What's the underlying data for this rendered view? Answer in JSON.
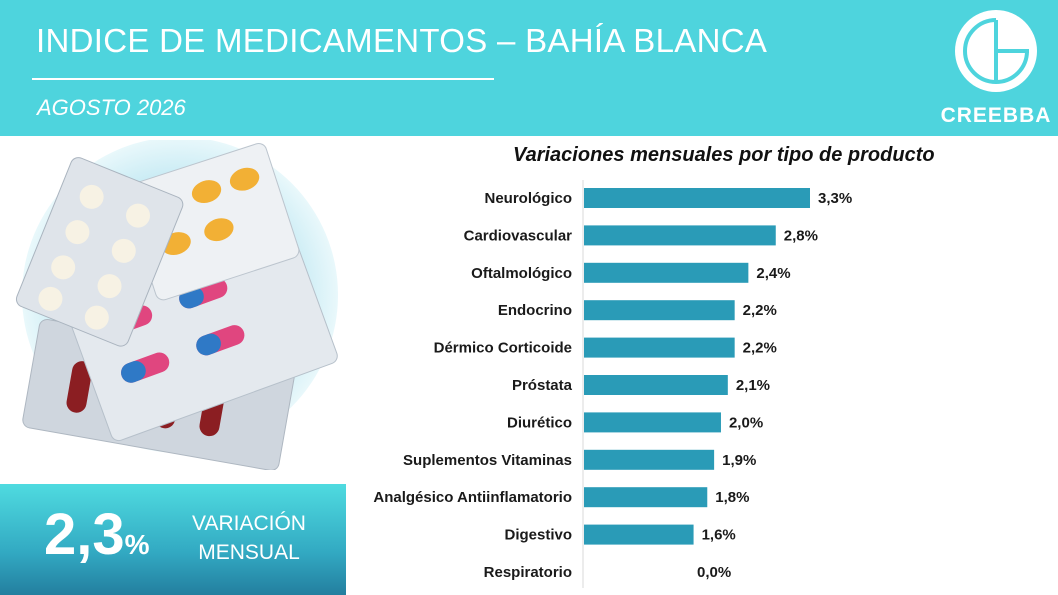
{
  "header": {
    "title": "INDICE DE MEDICAMENTOS – BAHÍA BLANCA",
    "period": "AGOSTO 2026",
    "logo_text": "CREEBBA"
  },
  "kpi": {
    "value": "2,3",
    "unit": "%",
    "label_line1": "VARIACIÓN",
    "label_line2": "MENSUAL"
  },
  "colors": {
    "header_bg": "#4ed4dd",
    "bar": "#2a9bb7",
    "kpi_gradient_top": "#4fdbe0",
    "kpi_gradient_bottom": "#237f9f"
  },
  "chart_data": {
    "type": "bar",
    "orientation": "horizontal",
    "title": "Variaciones mensuales por tipo de producto",
    "categories": [
      "Neurológico",
      "Cardiovascular",
      "Oftalmológico",
      "Endocrino",
      "Dérmico Corticoide",
      "Próstata",
      "Diurético",
      "Suplementos Vitaminas",
      "Analgésico Antiinflamatorio",
      "Digestivo",
      "Respiratorio"
    ],
    "values": [
      3.3,
      2.8,
      2.4,
      2.2,
      2.2,
      2.1,
      2.0,
      1.9,
      1.8,
      1.6,
      0.0
    ],
    "labels": [
      "3,3%",
      "2,8%",
      "2,4%",
      "2,2%",
      "2,2%",
      "2,1%",
      "2,0%",
      "1,9%",
      "1,8%",
      "1,6%",
      "0,0%"
    ],
    "xlim": [
      0,
      3.3
    ],
    "grid": false,
    "legend": "none"
  }
}
